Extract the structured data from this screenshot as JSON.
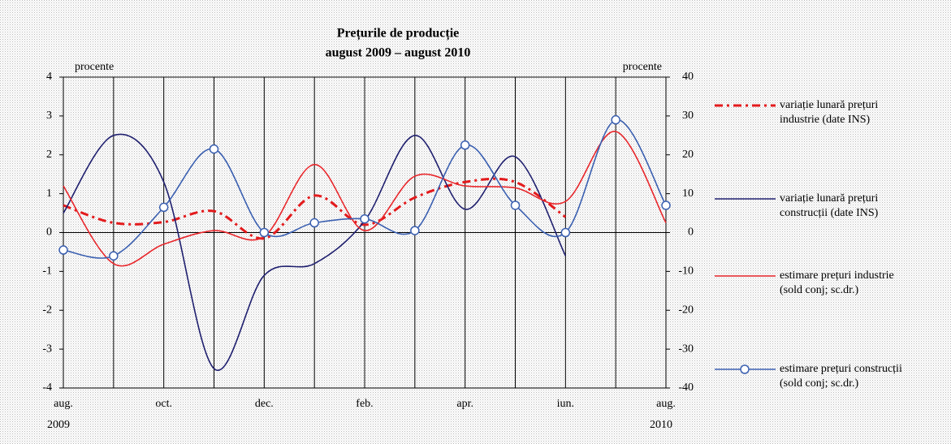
{
  "chart_data": {
    "type": "line",
    "title": "Prețurile de producție",
    "subtitle": "august 2009 – august 2010",
    "y_label": "procente",
    "y2_label": "procente",
    "categories": [
      "aug.",
      null,
      "oct.",
      null,
      "dec.",
      null,
      "feb.",
      null,
      "apr.",
      null,
      "iun.",
      null,
      "aug."
    ],
    "years": [
      "2009",
      "2010"
    ],
    "ylim": [
      -4,
      4
    ],
    "yticks": [
      -4,
      -3,
      -2,
      -1,
      0,
      1,
      2,
      3,
      4
    ],
    "y2lim": [
      -40,
      40
    ],
    "y2ticks": [
      -40,
      -30,
      -20,
      -10,
      0,
      10,
      20,
      30,
      40
    ],
    "grid": true,
    "series": [
      {
        "name": "variație lunară prețuri industrie (date INS)",
        "color": "#e31a1c",
        "style": "dashdot",
        "values": [
          0.7,
          0.25,
          0.27,
          0.55,
          -0.15,
          0.95,
          0.2,
          0.9,
          1.3,
          1.3,
          0.4,
          null,
          null
        ]
      },
      {
        "name": "variație lunară prețuri construcții (date INS)",
        "color": "#1f1f6e",
        "style": "solid",
        "values": [
          0.5,
          2.5,
          1.3,
          -3.5,
          -1.1,
          -0.8,
          0.3,
          2.5,
          0.6,
          1.95,
          -0.6,
          null,
          null
        ]
      },
      {
        "name": "estimare prețuri industrie (sold conj; sc.dr.)",
        "color": "#e8262b",
        "style": "solid",
        "axis": "y2",
        "values": [
          12,
          -8,
          -3,
          0.5,
          -1,
          17.5,
          0.5,
          14.5,
          12,
          11.5,
          8,
          26,
          2.5
        ]
      },
      {
        "name": "estimare prețuri construcții (sold conj; sc.dr.)",
        "color": "#3a5fb0",
        "style": "marker",
        "axis": "y2",
        "values": [
          -4.5,
          -6,
          6.5,
          21.5,
          0,
          2.5,
          3.5,
          0.5,
          22.5,
          7,
          0,
          29,
          7
        ]
      }
    ]
  }
}
